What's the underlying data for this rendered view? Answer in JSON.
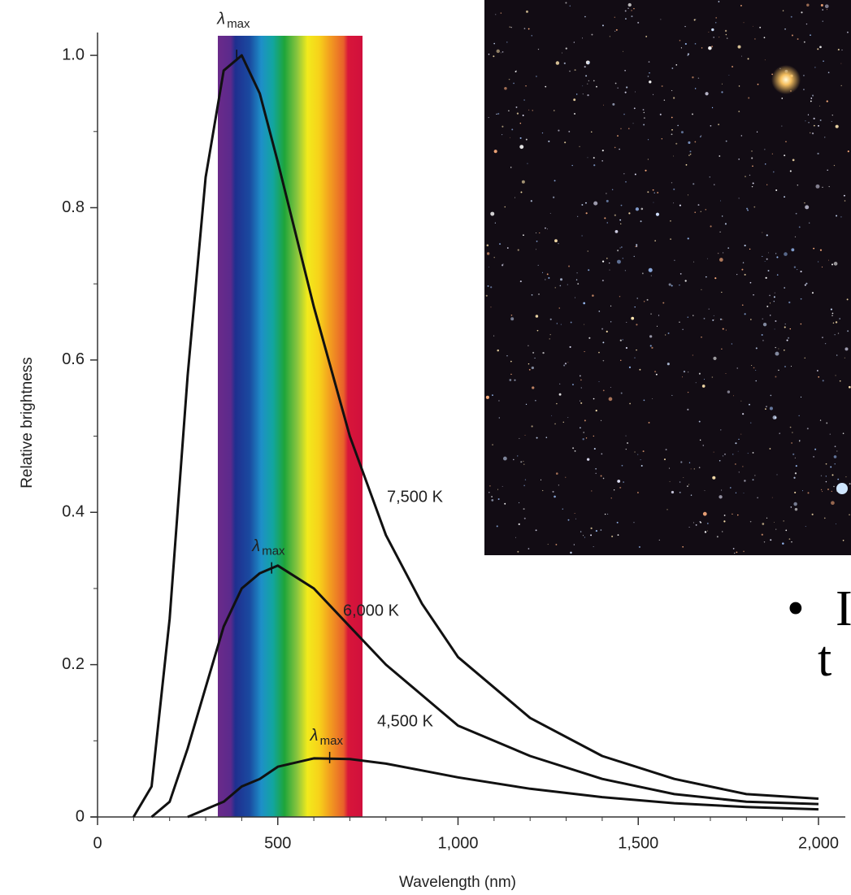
{
  "chart_data": {
    "type": "line",
    "xlabel": "Wavelength (nm)",
    "ylabel": "Relative brightness",
    "x": [
      100,
      150,
      200,
      250,
      300,
      350,
      400,
      450,
      500,
      600,
      700,
      800,
      900,
      1000,
      1200,
      1400,
      1600,
      1800,
      2000
    ],
    "series": [
      {
        "name": "7,500 K",
        "color": "#111111",
        "values": [
          0,
          0.04,
          0.26,
          0.58,
          0.84,
          0.98,
          1.0,
          0.95,
          0.86,
          0.67,
          0.5,
          0.37,
          0.28,
          0.21,
          0.13,
          0.08,
          0.05,
          0.03,
          0.024
        ]
      },
      {
        "name": "6,000 K",
        "color": "#111111",
        "values": [
          null,
          0,
          0.02,
          0.09,
          0.17,
          0.25,
          0.3,
          0.32,
          0.33,
          0.3,
          0.25,
          0.2,
          0.16,
          0.12,
          0.08,
          0.05,
          0.03,
          0.02,
          0.017
        ]
      },
      {
        "name": "4,500 K",
        "color": "#111111",
        "values": [
          null,
          null,
          null,
          0,
          0.01,
          0.02,
          0.04,
          0.05,
          0.066,
          0.077,
          0.076,
          0.07,
          0.061,
          0.052,
          0.037,
          0.026,
          0.018,
          0.013,
          0.01
        ]
      }
    ],
    "annotations": [
      {
        "symbol": "λ",
        "sub": "max",
        "x": 386,
        "y": 1.0
      },
      {
        "symbol": "λ",
        "sub": "max",
        "x": 483,
        "y": 0.327
      },
      {
        "symbol": "λ",
        "sub": "max",
        "x": 644,
        "y": 0.078
      }
    ],
    "xlim": [
      0,
      2000
    ],
    "ylim": [
      0,
      1.03
    ],
    "xticks": [
      0,
      500,
      {
        "value": 1000,
        "label": "1,000"
      },
      {
        "value": 1500,
        "label": "1,500"
      },
      {
        "value": 2000,
        "label": "2,000"
      }
    ],
    "yticks": [
      0,
      0.2,
      0.4,
      0.6,
      0.8,
      {
        "value": 1,
        "label": "1.0"
      }
    ],
    "grid": false
  },
  "slide_text": {
    "lines": [
      "I",
      "t"
    ]
  }
}
